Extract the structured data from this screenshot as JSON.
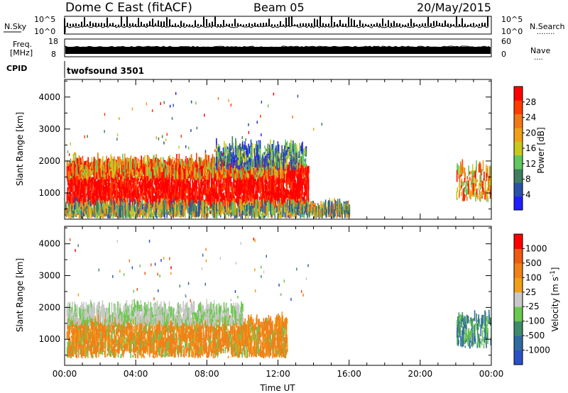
{
  "header": {
    "station": "Dome C East (fitACF)",
    "beam": "Beam 05",
    "date": "20/May/2015"
  },
  "top_panels": {
    "nsky_label": "N.Sky",
    "nsearch_label": "N.Search",
    "nsearch_dots": "........",
    "noise_ticks": [
      "10^5",
      "10^0"
    ],
    "freq_label_1": "Freq.",
    "freq_label_2": "[MHz]",
    "freq_ticks": [
      "18",
      "8"
    ],
    "nave_ticks": [
      "60",
      "0"
    ],
    "nave_label": "Nave",
    "nave_dots": "....",
    "cpid_label": "CPID",
    "cpid_value": "twofsound 3501"
  },
  "colors": {
    "power_scale": [
      "#1f1fff",
      "#2a50a8",
      "#3f7f5f",
      "#5fc85f",
      "#c8c81e",
      "#f0a018",
      "#f07818",
      "#ff3c00",
      "#ff0000"
    ],
    "velocity_scale": [
      "#2a50c8",
      "#2f6aa0",
      "#3f8a6a",
      "#6ac84f",
      "#c8c8c8",
      "#f0a018",
      "#f08018",
      "#f05a10",
      "#ff0000"
    ]
  },
  "chart_data": [
    {
      "type": "heatmap",
      "panel": "power",
      "ylabel": "Slant Range [km]",
      "y_ticks": [
        "4000",
        "3000",
        "2000",
        "1000"
      ],
      "ylim": [
        180,
        4550
      ],
      "colorbar_label": "Power [dB]",
      "colorbar_ticks": [
        "28",
        "24",
        "20",
        "16",
        "12",
        "8",
        "4"
      ],
      "clim": [
        0,
        32
      ],
      "scatter_regions": [
        {
          "t": [
            0.1,
            13.7
          ],
          "range": [
            500,
            1750
          ],
          "value": "24-32"
        },
        {
          "t": [
            0.1,
            12.5
          ],
          "range": [
            1400,
            1900
          ],
          "value": "12-28"
        },
        {
          "t": [
            8.5,
            13.6
          ],
          "range": [
            1700,
            2400
          ],
          "value": "4-24"
        },
        {
          "t": [
            0.0,
            16.0
          ],
          "range": [
            200,
            500
          ],
          "value": "8-24"
        },
        {
          "t": [
            22.0,
            24.0
          ],
          "range": [
            700,
            1700
          ],
          "value": "8-32"
        }
      ]
    },
    {
      "type": "heatmap",
      "panel": "velocity",
      "ylabel": "Slant Range [km]",
      "xlabel": "Time UT",
      "x_ticks": [
        "00:00",
        "04:00",
        "08:00",
        "12:00",
        "16:00",
        "20:00",
        "00:00"
      ],
      "y_ticks": [
        "4000",
        "3000",
        "2000",
        "1000"
      ],
      "ylim": [
        180,
        4550
      ],
      "colorbar_label": "Velocity [m s^-1]",
      "colorbar_ticks": [
        "1000",
        "500",
        "100",
        "25",
        "-25",
        "-100",
        "-500",
        "-1000"
      ],
      "scatter_regions": [
        {
          "t": [
            0.1,
            12.5
          ],
          "range": [
            400,
            1500
          ],
          "value": "-100 to -500"
        },
        {
          "t": [
            0.1,
            10.0
          ],
          "range": [
            1400,
            1900
          ],
          "value": "-25 to 25"
        },
        {
          "t": [
            22.0,
            24.0
          ],
          "range": [
            700,
            1600
          ],
          "value": "100 to 1000"
        }
      ]
    }
  ]
}
